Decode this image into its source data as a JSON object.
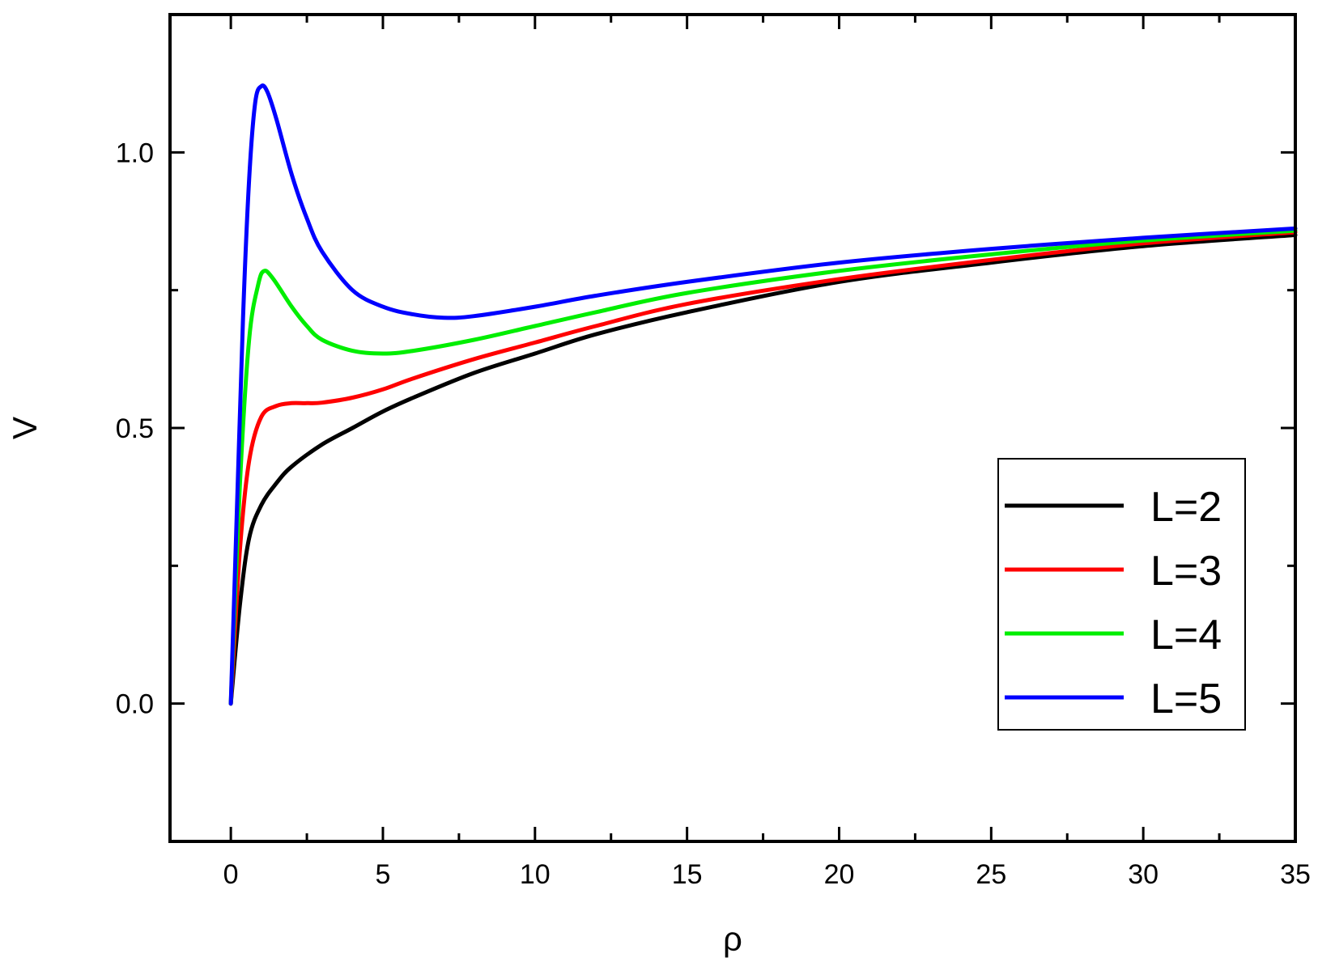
{
  "chart_data": {
    "type": "line",
    "xlabel": "ρ",
    "ylabel": "V",
    "xlim": [
      -2,
      35
    ],
    "ylim": [
      -0.25,
      1.25
    ],
    "x_ticks": [
      0,
      5,
      10,
      15,
      20,
      25,
      30,
      35
    ],
    "x_tick_labels": [
      "0",
      "5",
      "10",
      "15",
      "20",
      "25",
      "30",
      "35"
    ],
    "y_ticks": [
      0.0,
      0.5,
      1.0
    ],
    "y_tick_labels": [
      "0.0",
      "0.5",
      "1.0"
    ],
    "grid": false,
    "legend_position": "right",
    "series": [
      {
        "name": "L=2",
        "color": "#000000",
        "x": [
          0,
          0.3,
          0.6,
          1,
          1.5,
          2,
          3,
          4,
          5,
          6,
          8,
          10,
          12,
          15,
          20,
          25,
          30,
          35
        ],
        "y": [
          0,
          0.18,
          0.3,
          0.36,
          0.4,
          0.43,
          0.47,
          0.5,
          0.53,
          0.555,
          0.6,
          0.635,
          0.67,
          0.71,
          0.765,
          0.8,
          0.83,
          0.85
        ]
      },
      {
        "name": "L=3",
        "color": "#ff0000",
        "x": [
          0,
          0.3,
          0.6,
          1,
          1.5,
          2,
          2.5,
          3,
          4,
          5,
          6,
          8,
          10,
          12,
          15,
          20,
          25,
          30,
          35
        ],
        "y": [
          0,
          0.28,
          0.44,
          0.52,
          0.54,
          0.545,
          0.545,
          0.546,
          0.555,
          0.57,
          0.59,
          0.625,
          0.655,
          0.685,
          0.725,
          0.77,
          0.805,
          0.835,
          0.855
        ]
      },
      {
        "name": "L=4",
        "color": "#00ee00",
        "x": [
          0,
          0.3,
          0.6,
          0.9,
          1.1,
          1.4,
          2,
          2.5,
          3,
          4,
          5,
          6,
          8,
          10,
          12,
          15,
          20,
          25,
          30,
          35
        ],
        "y": [
          0,
          0.4,
          0.66,
          0.76,
          0.785,
          0.77,
          0.72,
          0.685,
          0.66,
          0.64,
          0.635,
          0.64,
          0.66,
          0.685,
          0.71,
          0.745,
          0.785,
          0.815,
          0.84,
          0.858
        ]
      },
      {
        "name": "L=5",
        "color": "#0000ff",
        "x": [
          0,
          0.2,
          0.4,
          0.6,
          0.8,
          1,
          1.2,
          1.5,
          2,
          2.5,
          3,
          4,
          5,
          6,
          7,
          8,
          10,
          12,
          15,
          20,
          25,
          30,
          35
        ],
        "y": [
          0,
          0.35,
          0.7,
          0.95,
          1.09,
          1.12,
          1.11,
          1.06,
          0.96,
          0.88,
          0.82,
          0.75,
          0.72,
          0.706,
          0.7,
          0.703,
          0.72,
          0.74,
          0.765,
          0.8,
          0.825,
          0.845,
          0.862
        ]
      }
    ]
  }
}
